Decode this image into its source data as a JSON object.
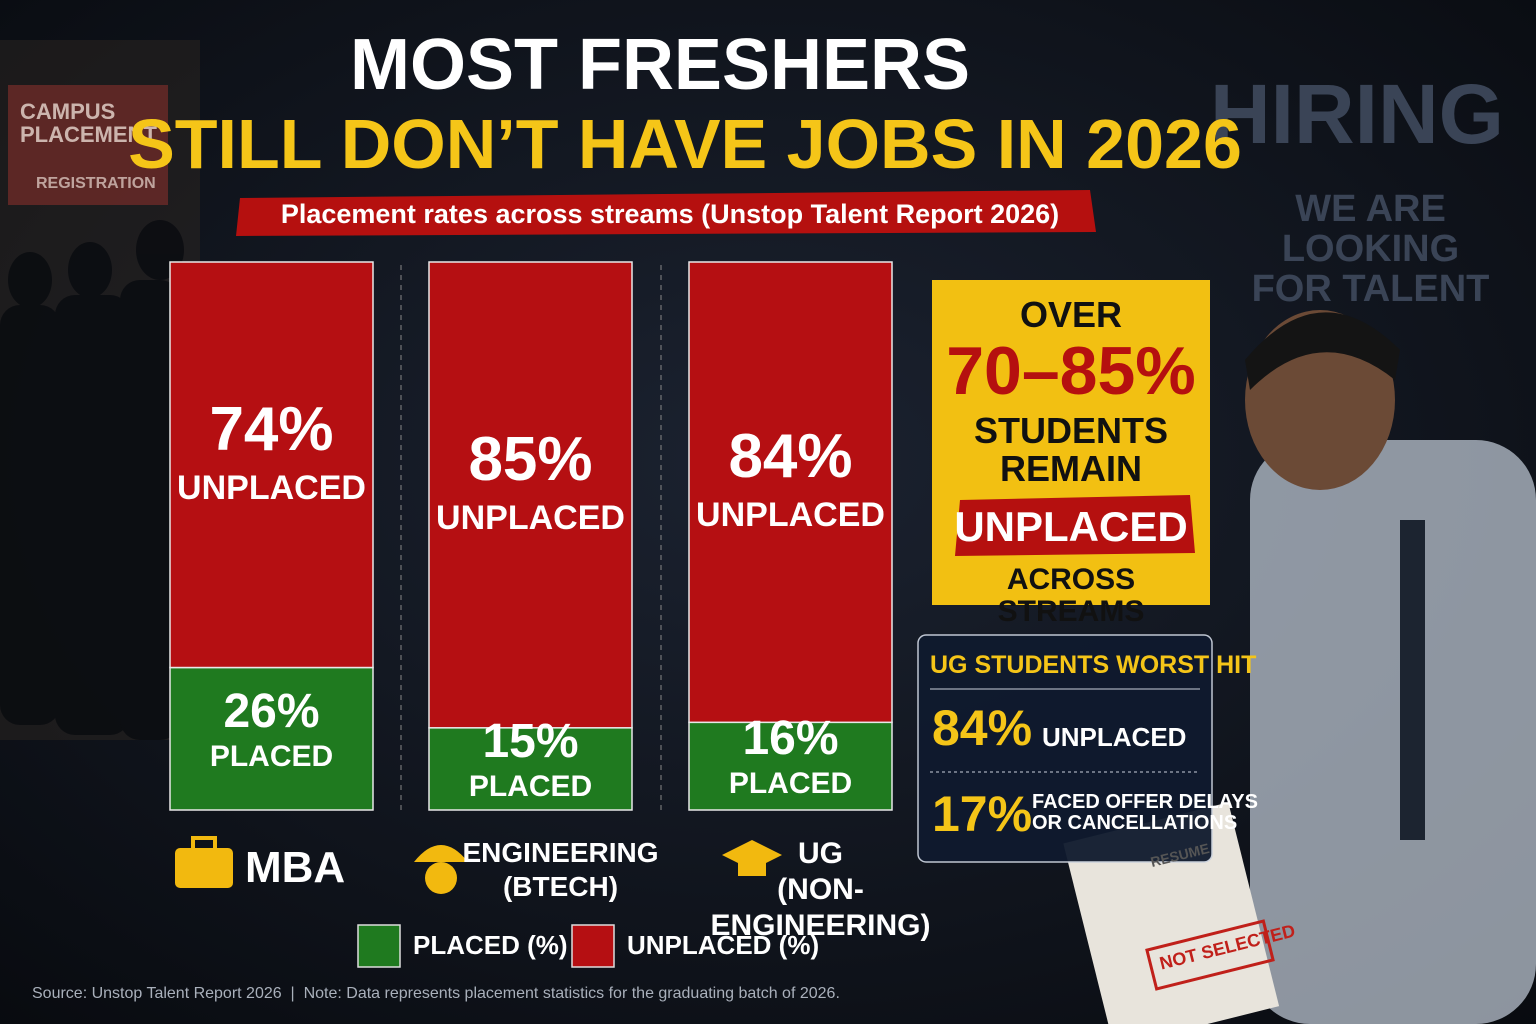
{
  "chart_data": {
    "type": "bar",
    "stacked": true,
    "title": [
      "MOST FRESHERS",
      "STILL DON’T HAVE JOBS IN 2026"
    ],
    "subtitle": "Placement rates across streams (Unstop Talent Report 2026)",
    "categories": [
      "MBA",
      "ENGINEERING\n(BTECH)",
      "UG\n(NON-ENGINEERING)"
    ],
    "series": [
      {
        "name": "PLACED (%)",
        "segment_label": "PLACED",
        "color": "#1f7a1f",
        "values": [
          26,
          15,
          16
        ],
        "value_labels": [
          "26%",
          "15%",
          "16%"
        ]
      },
      {
        "name": "UNPLACED (%)",
        "segment_label": "UNPLACED",
        "color": "#b50f12",
        "values": [
          74,
          85,
          84
        ],
        "value_labels": [
          "74%",
          "85%",
          "84%"
        ]
      }
    ],
    "ylim": [
      0,
      100
    ],
    "legend": "bottom",
    "callout": {
      "lines": [
        "OVER",
        "70–85%",
        "STUDENTS\nREMAIN",
        "UNPLACED",
        "ACROSS STREAMS"
      ]
    },
    "highlight_box": {
      "title": "UG STUDENTS WORST HIT",
      "items": [
        {
          "value": "84%",
          "label": "UNPLACED"
        },
        {
          "value": "17%",
          "label": "FACED OFFER DELAYS\nOR CANCELLATIONS"
        }
      ]
    },
    "source": "Source: Unstop Talent Report 2026  |  Note: Data represents placement statistics for the graduating batch of 2026.",
    "scene_texts": [
      "CAMPUS\nPLACEMENT",
      "REGISTRATION",
      "HIRING",
      "WE ARE LOOKING\nFOR TALENT",
      "RESUME",
      "NOT SELECTED"
    ]
  }
}
